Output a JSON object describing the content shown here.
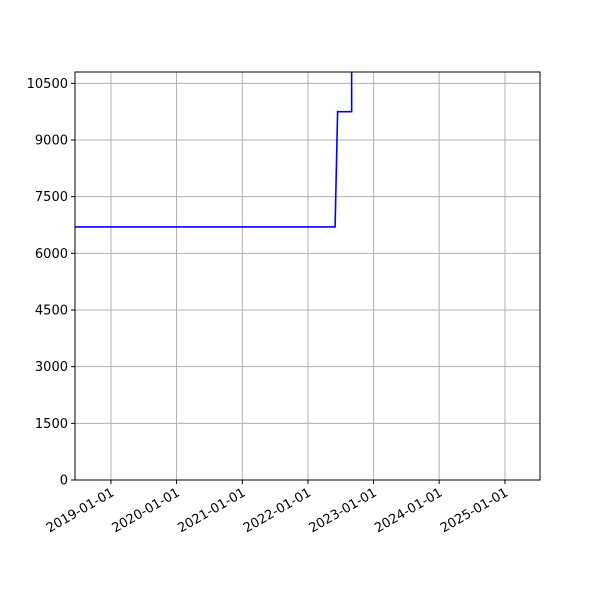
{
  "chart_data": {
    "type": "line",
    "title": "",
    "xlabel": "",
    "ylabel": "",
    "x_axis_type": "date",
    "xlim": [
      "2018-06-15",
      "2025-07-15"
    ],
    "ylim": [
      0,
      10800
    ],
    "grid": true,
    "x_ticks": [
      "2019-01-01",
      "2020-01-01",
      "2021-01-01",
      "2022-01-01",
      "2023-01-01",
      "2024-01-01",
      "2025-01-01"
    ],
    "y_ticks": [
      0,
      1500,
      3000,
      4500,
      6000,
      7500,
      9000,
      10500
    ],
    "series": [
      {
        "color": "#0000ff",
        "x": [
          "2018-06-15",
          "2022-06-01",
          "2022-06-15",
          "2022-09-01",
          "2022-09-01"
        ],
        "y": [
          6700,
          6700,
          9750,
          9750,
          10800
        ]
      }
    ]
  }
}
